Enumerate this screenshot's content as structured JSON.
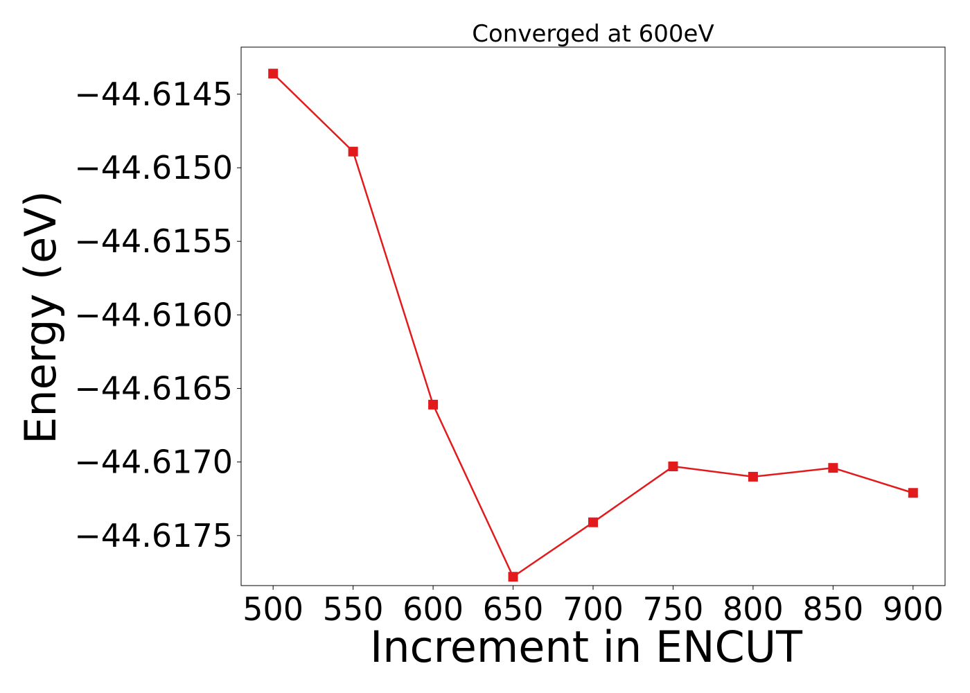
{
  "chart_data": {
    "type": "line",
    "title": "Converged at 600eV",
    "xlabel": "Increment in ENCUT",
    "ylabel": "Energy (eV)",
    "x": [
      500,
      550,
      600,
      650,
      700,
      750,
      800,
      850,
      900
    ],
    "series": [
      {
        "values": [
          -44.61436,
          -44.61489,
          -44.61661,
          -44.61778,
          -44.61741,
          -44.61703,
          -44.6171,
          -44.61704,
          -44.61721
        ],
        "color": "#e31a1c",
        "marker": "square"
      }
    ],
    "x_ticks": [
      500,
      550,
      600,
      650,
      700,
      750,
      800,
      850,
      900
    ],
    "x_tick_labels": [
      "500",
      "550",
      "600",
      "650",
      "700",
      "750",
      "800",
      "850",
      "900"
    ],
    "y_ticks": [
      -44.6145,
      -44.615,
      -44.6155,
      -44.616,
      -44.6165,
      -44.617,
      -44.6175
    ],
    "y_tick_labels": [
      "−44.6145",
      "−44.6150",
      "−44.6155",
      "−44.6160",
      "−44.6165",
      "−44.6170",
      "−44.6175"
    ],
    "xlim": [
      480,
      920
    ],
    "ylim": [
      -44.61784,
      -44.61418
    ],
    "grid": false,
    "legend": "none"
  }
}
